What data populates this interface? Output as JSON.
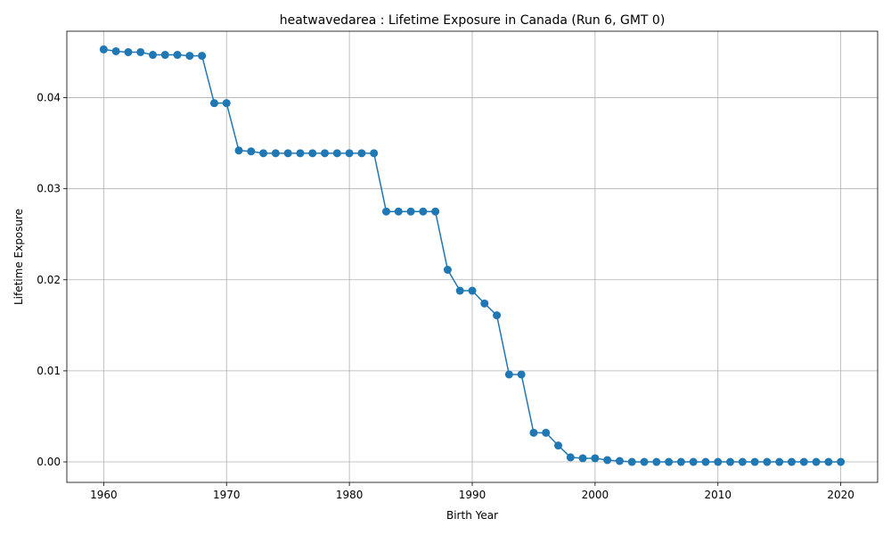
{
  "chart_data": {
    "type": "line",
    "title": "heatwavedarea : Lifetime Exposure in Canada (Run 6, GMT 0)",
    "xlabel": "Birth Year",
    "ylabel": "Lifetime Exposure",
    "xlim": [
      1957,
      2023
    ],
    "ylim": [
      -0.00225,
      0.0473
    ],
    "xticks": [
      1960,
      1970,
      1980,
      1990,
      2000,
      2010,
      2020
    ],
    "yticks": [
      0.0,
      0.01,
      0.02,
      0.03,
      0.04
    ],
    "ytick_labels": [
      "0.00",
      "0.01",
      "0.02",
      "0.03",
      "0.04"
    ],
    "grid": true,
    "marker": "circle",
    "color": "#1f77b4",
    "x": [
      1960,
      1961,
      1962,
      1963,
      1964,
      1965,
      1966,
      1967,
      1968,
      1969,
      1970,
      1971,
      1972,
      1973,
      1974,
      1975,
      1976,
      1977,
      1978,
      1979,
      1980,
      1981,
      1982,
      1983,
      1984,
      1985,
      1986,
      1987,
      1988,
      1989,
      1990,
      1991,
      1992,
      1993,
      1994,
      1995,
      1996,
      1997,
      1998,
      1999,
      2000,
      2001,
      2002,
      2003,
      2004,
      2005,
      2006,
      2007,
      2008,
      2009,
      2010,
      2011,
      2012,
      2013,
      2014,
      2015,
      2016,
      2017,
      2018,
      2019,
      2020
    ],
    "y": [
      0.0453,
      0.0451,
      0.045,
      0.045,
      0.0447,
      0.0447,
      0.0447,
      0.0446,
      0.0446,
      0.0394,
      0.0394,
      0.0342,
      0.0341,
      0.0339,
      0.0339,
      0.0339,
      0.0339,
      0.0339,
      0.0339,
      0.0339,
      0.0339,
      0.0339,
      0.0339,
      0.0275,
      0.0275,
      0.0275,
      0.0275,
      0.0275,
      0.0211,
      0.0188,
      0.0188,
      0.0174,
      0.0161,
      0.0096,
      0.0096,
      0.0032,
      0.0032,
      0.0018,
      0.0005,
      0.0004,
      0.0004,
      0.0002,
      0.0001,
      0.0,
      0.0,
      0.0,
      0.0,
      0.0,
      0.0,
      0.0,
      0.0,
      0.0,
      0.0,
      0.0,
      0.0,
      0.0,
      0.0,
      0.0,
      0.0,
      0.0,
      0.0
    ]
  }
}
